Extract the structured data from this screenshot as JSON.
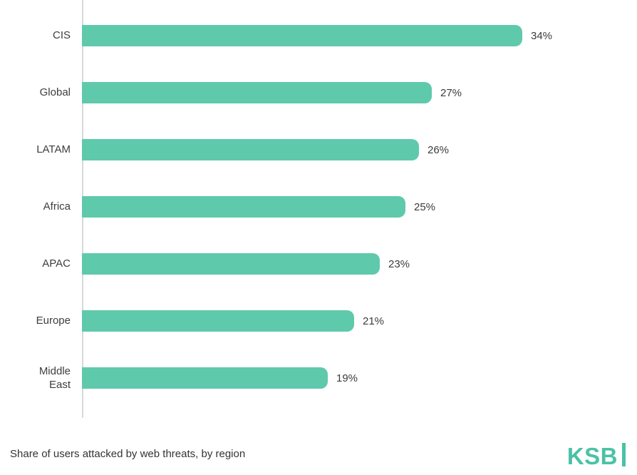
{
  "chart_data": {
    "type": "bar",
    "orientation": "horizontal",
    "title": "Share of users attacked by web threats, by region",
    "xlabel": "",
    "ylabel": "",
    "categories": [
      "CIS",
      "Global",
      "LATAM",
      "Africa",
      "APAC",
      "Europe",
      "Middle East"
    ],
    "values": [
      34,
      27,
      26,
      25,
      23,
      21,
      19
    ],
    "value_labels": [
      "34%",
      "27%",
      "26%",
      "25%",
      "23%",
      "21%",
      "19%"
    ],
    "xlim": [
      0,
      34
    ],
    "grid": false,
    "legend": "none",
    "bar_color": "#5fc9ac",
    "axis_color": "#d9d9d9",
    "label_color": "#3d3d3d"
  },
  "footer": {
    "caption": "Share of users attacked by web threats, by region",
    "brand": "KSB"
  }
}
